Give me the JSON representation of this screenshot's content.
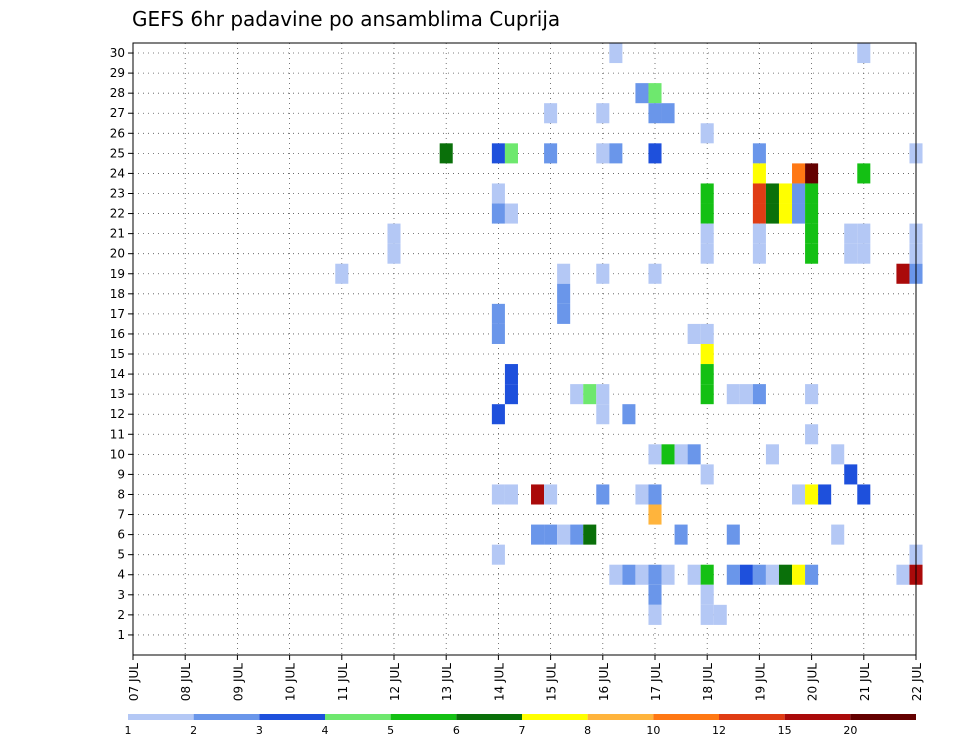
{
  "chart_data": {
    "type": "heatmap",
    "title": "GEFS 6hr padavine po ansamblima Cuprija",
    "xlabel": "",
    "ylabel": "",
    "x_tick_labels": [
      "07 JUL",
      "08 JUL",
      "09 JUL",
      "10 JUL",
      "11 JUL",
      "12 JUL",
      "13 JUL",
      "14 JUL",
      "15 JUL",
      "16 JUL",
      "17 JUL",
      "18 JUL",
      "19 JUL",
      "20 JUL",
      "21 JUL",
      "22 JUL"
    ],
    "x_range": [
      0,
      15
    ],
    "y_tick_labels": [
      "1",
      "2",
      "3",
      "4",
      "5",
      "6",
      "7",
      "8",
      "9",
      "10",
      "11",
      "12",
      "13",
      "14",
      "15",
      "16",
      "17",
      "18",
      "19",
      "20",
      "21",
      "22",
      "23",
      "24",
      "25",
      "26",
      "27",
      "28",
      "29",
      "30"
    ],
    "y_range": [
      0,
      30.5
    ],
    "grid": true,
    "legend_position": "bottom",
    "colorbar": {
      "colors": [
        "#b4c8f5",
        "#6a96ea",
        "#1e50dc",
        "#6ee86e",
        "#14c014",
        "#0a700a",
        "#ffff00",
        "#ffb43c",
        "#ff7814",
        "#e03c14",
        "#aa0a0a",
        "#640000"
      ],
      "labels": [
        "1",
        "2",
        "3",
        "4",
        "5",
        "6",
        "7",
        "8",
        "10",
        "12",
        "15",
        "20"
      ]
    },
    "cells": [
      {
        "x": 9.25,
        "m": 30,
        "c": 0
      },
      {
        "x": 14.0,
        "m": 30,
        "c": 0
      },
      {
        "x": 9.75,
        "m": 28,
        "c": 1
      },
      {
        "x": 10.0,
        "m": 28,
        "c": 3
      },
      {
        "x": 8.0,
        "m": 27,
        "c": 0
      },
      {
        "x": 9.0,
        "m": 27,
        "c": 0
      },
      {
        "x": 10.0,
        "m": 27,
        "c": 1
      },
      {
        "x": 10.25,
        "m": 27,
        "c": 1
      },
      {
        "x": 11.0,
        "m": 26,
        "c": 0
      },
      {
        "x": 6.0,
        "m": 25,
        "c": 5
      },
      {
        "x": 7.0,
        "m": 25,
        "c": 2
      },
      {
        "x": 7.25,
        "m": 25,
        "c": 3
      },
      {
        "x": 8.0,
        "m": 25,
        "c": 1
      },
      {
        "x": 9.0,
        "m": 25,
        "c": 0
      },
      {
        "x": 9.25,
        "m": 25,
        "c": 1
      },
      {
        "x": 10.0,
        "m": 25,
        "c": 2
      },
      {
        "x": 12.0,
        "m": 25,
        "c": 1
      },
      {
        "x": 15.0,
        "m": 25,
        "c": 0
      },
      {
        "x": 12.0,
        "m": 24,
        "c": 6
      },
      {
        "x": 12.75,
        "m": 24,
        "c": 8
      },
      {
        "x": 13.0,
        "m": 24,
        "c": 11
      },
      {
        "x": 14.0,
        "m": 24,
        "c": 4
      },
      {
        "x": 7.0,
        "m": 23,
        "c": 0
      },
      {
        "x": 11.0,
        "m": 23,
        "c": 4
      },
      {
        "x": 12.0,
        "m": 23,
        "c": 9
      },
      {
        "x": 12.25,
        "m": 23,
        "c": 5
      },
      {
        "x": 12.5,
        "m": 23,
        "c": 6
      },
      {
        "x": 12.75,
        "m": 23,
        "c": 1
      },
      {
        "x": 13.0,
        "m": 23,
        "c": 4
      },
      {
        "x": 7.0,
        "m": 22,
        "c": 1
      },
      {
        "x": 7.25,
        "m": 22,
        "c": 0
      },
      {
        "x": 11.0,
        "m": 22,
        "c": 4
      },
      {
        "x": 12.0,
        "m": 22,
        "c": 9
      },
      {
        "x": 12.25,
        "m": 22,
        "c": 5
      },
      {
        "x": 12.5,
        "m": 22,
        "c": 6
      },
      {
        "x": 12.75,
        "m": 22,
        "c": 1
      },
      {
        "x": 13.0,
        "m": 22,
        "c": 4
      },
      {
        "x": 5.0,
        "m": 21,
        "c": 0
      },
      {
        "x": 11.0,
        "m": 21,
        "c": 0
      },
      {
        "x": 12.0,
        "m": 21,
        "c": 0
      },
      {
        "x": 13.0,
        "m": 21,
        "c": 4
      },
      {
        "x": 13.75,
        "m": 21,
        "c": 0
      },
      {
        "x": 14.0,
        "m": 21,
        "c": 0
      },
      {
        "x": 15.0,
        "m": 21,
        "c": 0
      },
      {
        "x": 5.0,
        "m": 20,
        "c": 0
      },
      {
        "x": 11.0,
        "m": 20,
        "c": 0
      },
      {
        "x": 12.0,
        "m": 20,
        "c": 0
      },
      {
        "x": 13.0,
        "m": 20,
        "c": 4
      },
      {
        "x": 13.75,
        "m": 20,
        "c": 0
      },
      {
        "x": 14.0,
        "m": 20,
        "c": 0
      },
      {
        "x": 15.0,
        "m": 20,
        "c": 0
      },
      {
        "x": 4.0,
        "m": 19,
        "c": 0
      },
      {
        "x": 8.25,
        "m": 19,
        "c": 0
      },
      {
        "x": 9.0,
        "m": 19,
        "c": 0
      },
      {
        "x": 10.0,
        "m": 19,
        "c": 0
      },
      {
        "x": 14.75,
        "m": 19,
        "c": 10
      },
      {
        "x": 15.0,
        "m": 19,
        "c": 1
      },
      {
        "x": 8.25,
        "m": 18,
        "c": 1
      },
      {
        "x": 7.0,
        "m": 17,
        "c": 1
      },
      {
        "x": 8.25,
        "m": 17,
        "c": 1
      },
      {
        "x": 7.0,
        "m": 16,
        "c": 1
      },
      {
        "x": 10.75,
        "m": 16,
        "c": 0
      },
      {
        "x": 11.0,
        "m": 16,
        "c": 0
      },
      {
        "x": 11.0,
        "m": 15,
        "c": 6
      },
      {
        "x": 7.25,
        "m": 14,
        "c": 2
      },
      {
        "x": 11.0,
        "m": 14,
        "c": 4
      },
      {
        "x": 7.25,
        "m": 13,
        "c": 2
      },
      {
        "x": 8.5,
        "m": 13,
        "c": 0
      },
      {
        "x": 8.75,
        "m": 13,
        "c": 3
      },
      {
        "x": 9.0,
        "m": 13,
        "c": 0
      },
      {
        "x": 11.0,
        "m": 13,
        "c": 4
      },
      {
        "x": 11.5,
        "m": 13,
        "c": 0
      },
      {
        "x": 11.75,
        "m": 13,
        "c": 0
      },
      {
        "x": 12.0,
        "m": 13,
        "c": 1
      },
      {
        "x": 13.0,
        "m": 13,
        "c": 0
      },
      {
        "x": 7.0,
        "m": 12,
        "c": 2
      },
      {
        "x": 9.0,
        "m": 12,
        "c": 0
      },
      {
        "x": 9.5,
        "m": 12,
        "c": 1
      },
      {
        "x": 13.0,
        "m": 11,
        "c": 0
      },
      {
        "x": 10.0,
        "m": 10,
        "c": 0
      },
      {
        "x": 10.25,
        "m": 10,
        "c": 4
      },
      {
        "x": 10.5,
        "m": 10,
        "c": 0
      },
      {
        "x": 10.75,
        "m": 10,
        "c": 1
      },
      {
        "x": 12.25,
        "m": 10,
        "c": 0
      },
      {
        "x": 13.5,
        "m": 10,
        "c": 0
      },
      {
        "x": 11.0,
        "m": 9,
        "c": 0
      },
      {
        "x": 13.75,
        "m": 9,
        "c": 2
      },
      {
        "x": 7.0,
        "m": 8,
        "c": 0
      },
      {
        "x": 7.25,
        "m": 8,
        "c": 0
      },
      {
        "x": 7.75,
        "m": 8,
        "c": 10
      },
      {
        "x": 8.0,
        "m": 8,
        "c": 0
      },
      {
        "x": 9.0,
        "m": 8,
        "c": 1
      },
      {
        "x": 9.75,
        "m": 8,
        "c": 0
      },
      {
        "x": 10.0,
        "m": 8,
        "c": 1
      },
      {
        "x": 12.75,
        "m": 8,
        "c": 0
      },
      {
        "x": 13.0,
        "m": 8,
        "c": 6
      },
      {
        "x": 13.25,
        "m": 8,
        "c": 2
      },
      {
        "x": 14.0,
        "m": 8,
        "c": 2
      },
      {
        "x": 10.0,
        "m": 7,
        "c": 7
      },
      {
        "x": 7.75,
        "m": 6,
        "c": 1
      },
      {
        "x": 8.0,
        "m": 6,
        "c": 1
      },
      {
        "x": 8.25,
        "m": 6,
        "c": 0
      },
      {
        "x": 8.5,
        "m": 6,
        "c": 1
      },
      {
        "x": 8.75,
        "m": 6,
        "c": 5
      },
      {
        "x": 10.5,
        "m": 6,
        "c": 1
      },
      {
        "x": 11.5,
        "m": 6,
        "c": 1
      },
      {
        "x": 13.5,
        "m": 6,
        "c": 0
      },
      {
        "x": 7.0,
        "m": 5,
        "c": 0
      },
      {
        "x": 15.0,
        "m": 5,
        "c": 0
      },
      {
        "x": 9.25,
        "m": 4,
        "c": 0
      },
      {
        "x": 9.5,
        "m": 4,
        "c": 1
      },
      {
        "x": 9.75,
        "m": 4,
        "c": 0
      },
      {
        "x": 10.0,
        "m": 4,
        "c": 1
      },
      {
        "x": 10.25,
        "m": 4,
        "c": 0
      },
      {
        "x": 10.75,
        "m": 4,
        "c": 0
      },
      {
        "x": 11.0,
        "m": 4,
        "c": 4
      },
      {
        "x": 11.5,
        "m": 4,
        "c": 1
      },
      {
        "x": 11.75,
        "m": 4,
        "c": 2
      },
      {
        "x": 12.0,
        "m": 4,
        "c": 1
      },
      {
        "x": 12.25,
        "m": 4,
        "c": 0
      },
      {
        "x": 12.5,
        "m": 4,
        "c": 5
      },
      {
        "x": 12.75,
        "m": 4,
        "c": 6
      },
      {
        "x": 13.0,
        "m": 4,
        "c": 1
      },
      {
        "x": 14.75,
        "m": 4,
        "c": 0
      },
      {
        "x": 15.0,
        "m": 4,
        "c": 10
      },
      {
        "x": 10.0,
        "m": 3,
        "c": 1
      },
      {
        "x": 11.0,
        "m": 3,
        "c": 0
      },
      {
        "x": 10.0,
        "m": 2,
        "c": 0
      },
      {
        "x": 11.0,
        "m": 2,
        "c": 0
      },
      {
        "x": 11.25,
        "m": 2,
        "c": 0
      }
    ]
  }
}
